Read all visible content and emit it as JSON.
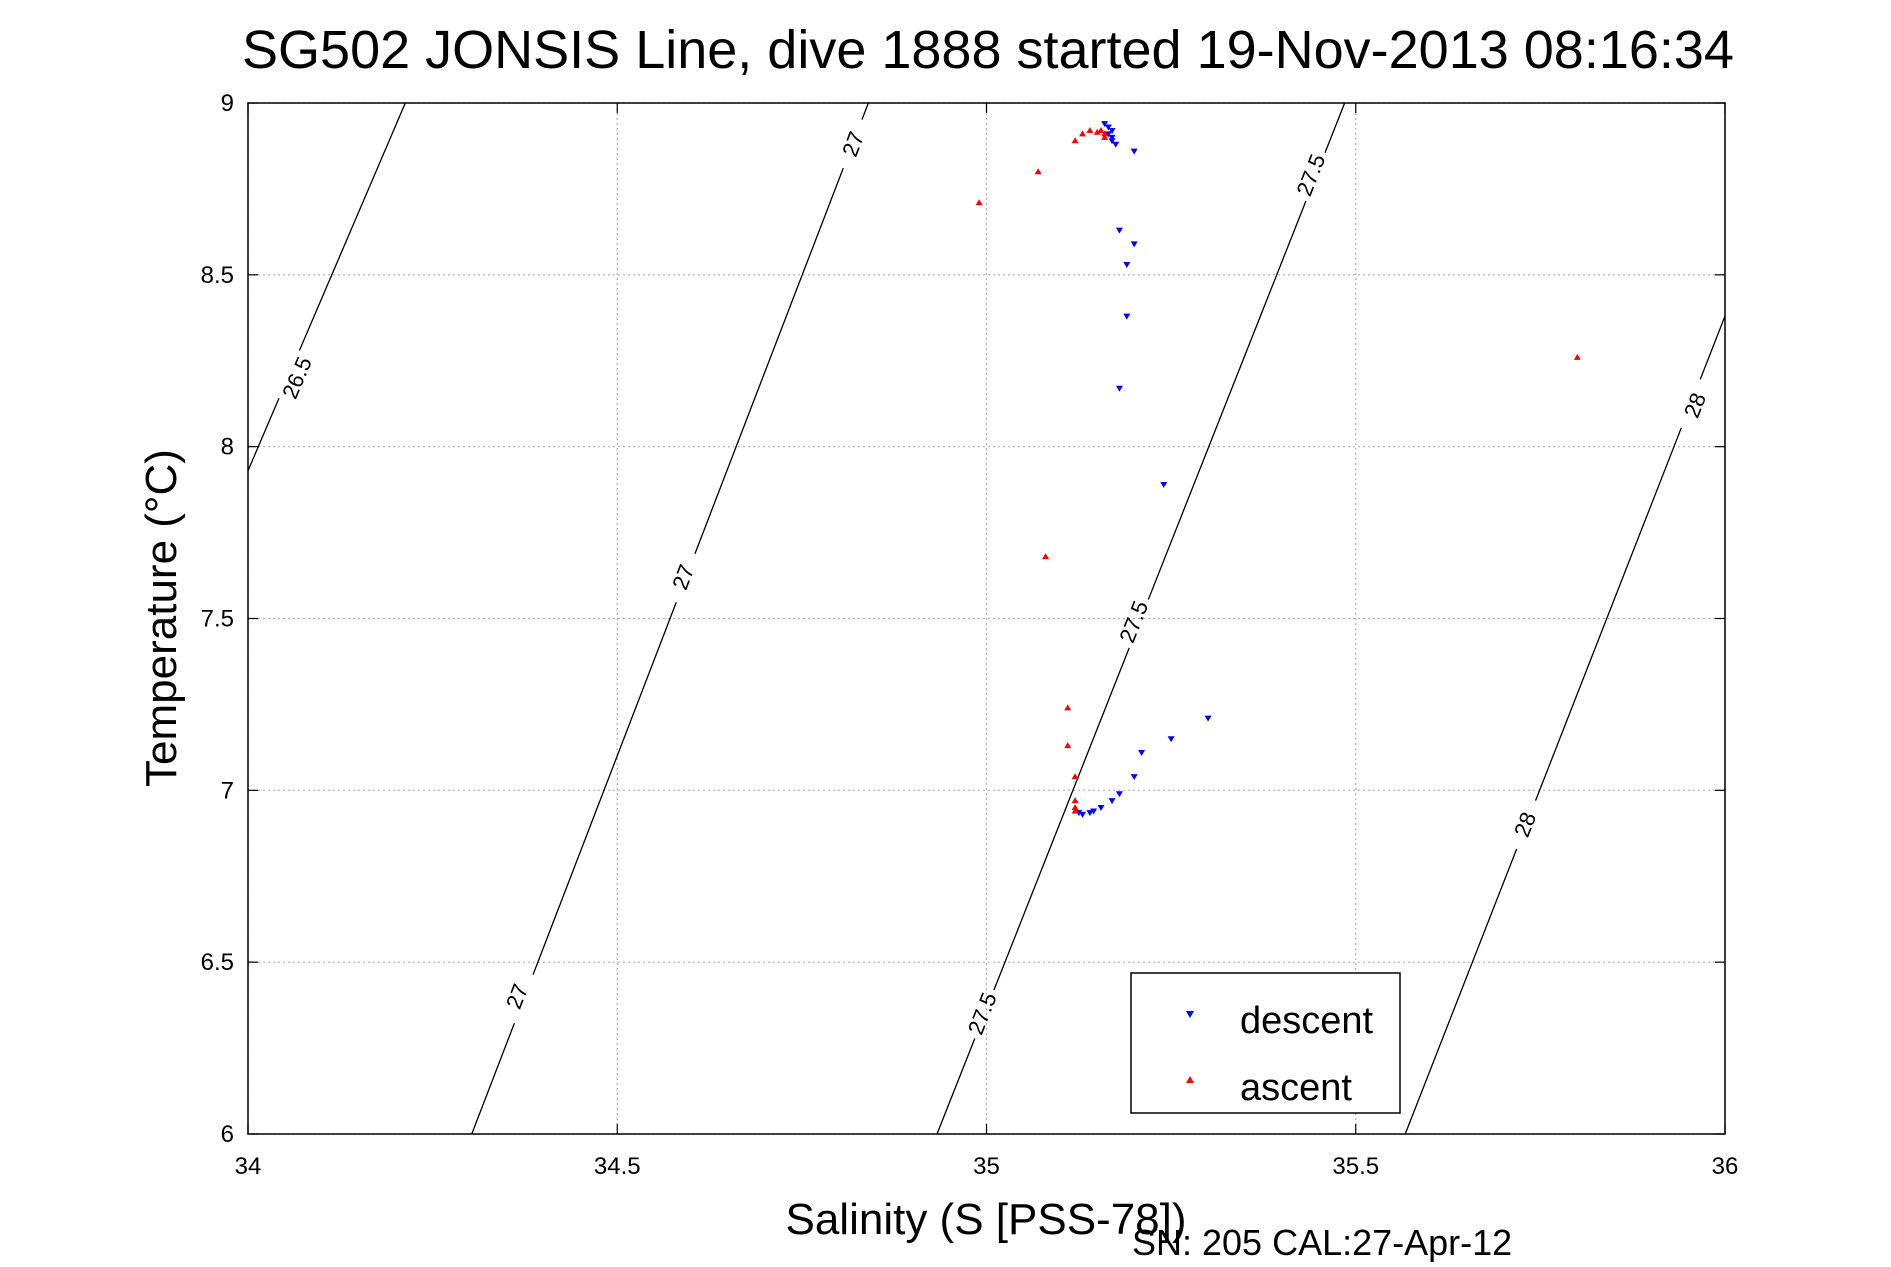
{
  "chart_data": {
    "type": "scatter",
    "title": "SG502 JONSIS Line, dive 1888 started 19-Nov-2013 08:16:34",
    "xlabel": "Salinity (S [PSS-78])",
    "ylabel": "Temperature (°C)",
    "footer": "SN: 205  CAL:27-Apr-12",
    "xlim": [
      34,
      36
    ],
    "ylim": [
      6,
      9
    ],
    "xticks": [
      "34",
      "34.5",
      "35",
      "35.5",
      "36"
    ],
    "yticks": [
      "6",
      "6.5",
      "7",
      "7.5",
      "8",
      "8.5",
      "9"
    ],
    "grid": true,
    "legend_position": "bottom-right",
    "colors": {
      "descent": "#0000ff",
      "ascent": "#ff0000",
      "contour": "#000000",
      "grid": "#b0b0b0"
    },
    "series": [
      {
        "name": "descent",
        "marker": "triangle-down",
        "points": [
          [
            35.16,
            8.94
          ],
          [
            35.165,
            8.93
          ],
          [
            35.17,
            8.92
          ],
          [
            35.165,
            8.91
          ],
          [
            35.17,
            8.9
          ],
          [
            35.17,
            8.89
          ],
          [
            35.175,
            8.88
          ],
          [
            35.2,
            8.86
          ],
          [
            35.18,
            8.63
          ],
          [
            35.2,
            8.59
          ],
          [
            35.19,
            8.53
          ],
          [
            35.19,
            8.38
          ],
          [
            35.18,
            8.17
          ],
          [
            35.24,
            7.89
          ],
          [
            35.3,
            7.21
          ],
          [
            35.25,
            7.15
          ],
          [
            35.21,
            7.11
          ],
          [
            35.2,
            7.04
          ],
          [
            35.18,
            6.99
          ],
          [
            35.17,
            6.97
          ],
          [
            35.155,
            6.95
          ],
          [
            35.145,
            6.94
          ],
          [
            35.14,
            6.935
          ],
          [
            35.13,
            6.93
          ],
          [
            35.125,
            6.935
          ]
        ]
      },
      {
        "name": "ascent",
        "marker": "triangle-up",
        "points": [
          [
            34.99,
            8.71
          ],
          [
            35.07,
            8.8
          ],
          [
            35.12,
            8.89
          ],
          [
            35.13,
            8.91
          ],
          [
            35.14,
            8.92
          ],
          [
            35.15,
            8.915
          ],
          [
            35.16,
            8.9
          ],
          [
            35.155,
            8.92
          ],
          [
            35.16,
            8.91
          ],
          [
            35.8,
            8.26
          ],
          [
            35.08,
            7.68
          ],
          [
            35.11,
            7.24
          ],
          [
            35.11,
            7.13
          ],
          [
            35.12,
            7.04
          ],
          [
            35.12,
            6.97
          ],
          [
            35.12,
            6.95
          ],
          [
            35.12,
            6.94
          ]
        ]
      }
    ],
    "contours": [
      {
        "level": "26.5",
        "points": [
          [
            34.0,
            7.93
          ],
          [
            34.213,
            9.0
          ]
        ],
        "labels": [
          [
            34.067,
            8.2
          ]
        ]
      },
      {
        "level": "27",
        "points": [
          [
            34.303,
            6.0
          ],
          [
            34.84,
            9.0
          ]
        ],
        "labels": [
          [
            34.365,
            6.4
          ],
          [
            34.59,
            7.62
          ],
          [
            34.82,
            8.88
          ]
        ]
      },
      {
        "level": "27.5",
        "points": [
          [
            34.933,
            6.0
          ],
          [
            35.485,
            9.0
          ]
        ],
        "labels": [
          [
            34.995,
            6.35
          ],
          [
            35.2,
            7.49
          ],
          [
            35.44,
            8.79
          ]
        ]
      },
      {
        "level": "28",
        "points": [
          [
            35.567,
            6.0
          ],
          [
            36.0,
            8.38
          ]
        ],
        "labels": [
          [
            35.73,
            6.9
          ],
          [
            35.96,
            8.12
          ]
        ]
      }
    ]
  }
}
